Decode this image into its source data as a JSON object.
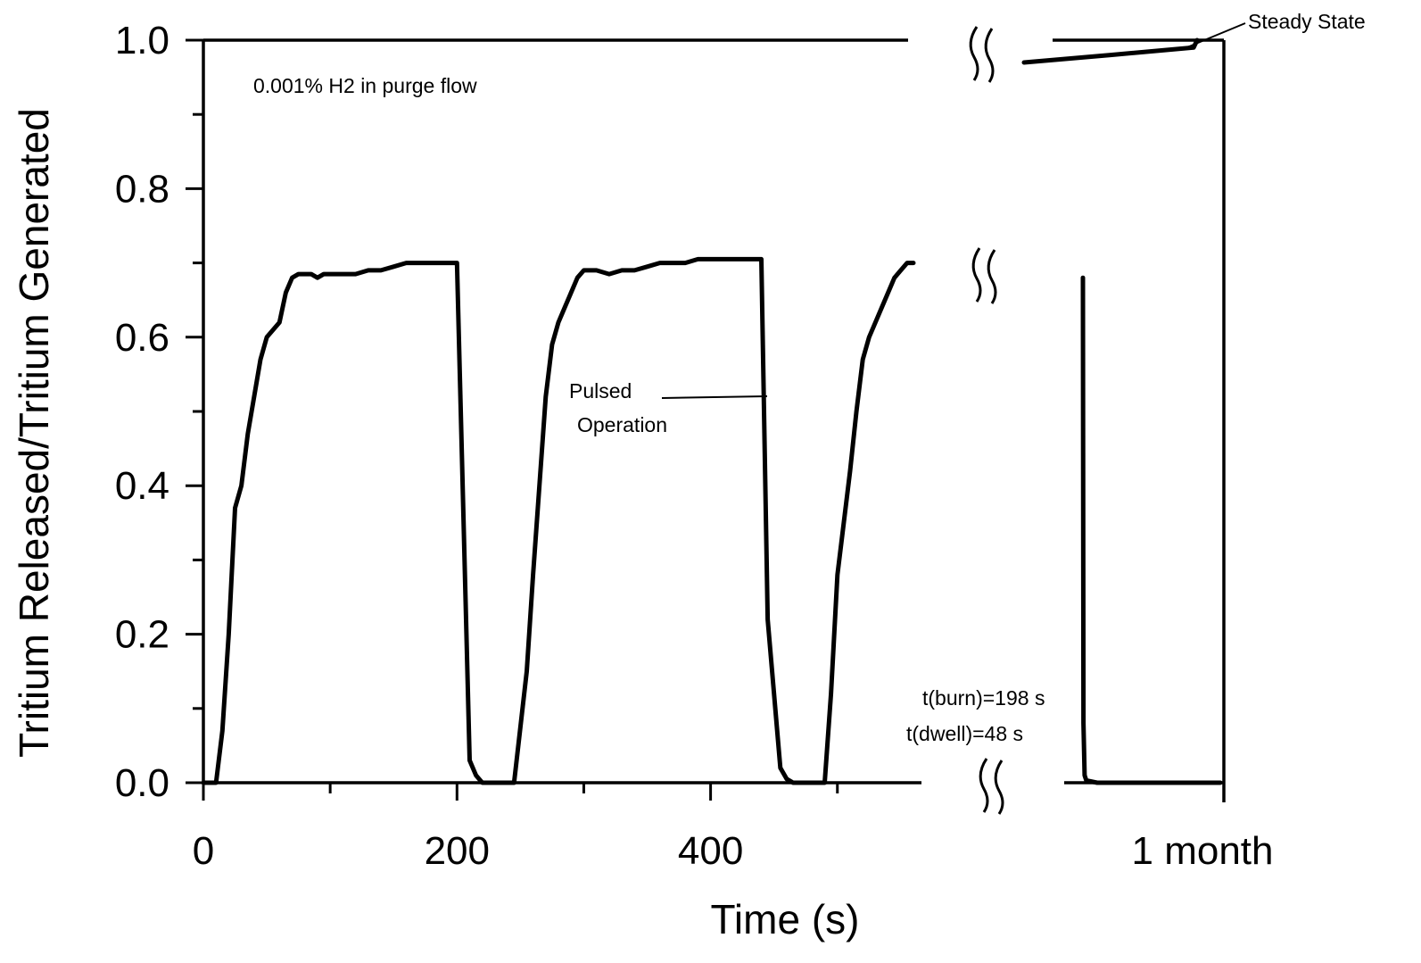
{
  "chart_data": {
    "type": "line",
    "xlabel": "Time (s)",
    "ylabel": "Tritium Released/Tritium Generated",
    "ylim": [
      0,
      1.0
    ],
    "xlim_first_segment": [
      0,
      560
    ],
    "x_ticks": [
      "0",
      "200",
      "400"
    ],
    "x_break_label": "1 month",
    "y_ticks": [
      "0.0",
      "0.2",
      "0.4",
      "0.6",
      "0.8",
      "1.0"
    ],
    "grid": false,
    "axis_break": true,
    "annotations": {
      "condition": "0.001% H2 in purge flow",
      "pulsed_line1": "Pulsed",
      "pulsed_line2": "Operation",
      "steady_state": "Steady State",
      "burn": "t(burn)=198 s",
      "dwell": "t(dwell)=48 s"
    },
    "series": [
      {
        "name": "Pulsed Operation",
        "segment": "before-break",
        "x": [
          0,
          10,
          15,
          20,
          25,
          30,
          35,
          40,
          45,
          50,
          55,
          60,
          65,
          70,
          75,
          80,
          85,
          90,
          95,
          100,
          110,
          120,
          130,
          140,
          150,
          160,
          170,
          180,
          190,
          200,
          210,
          215,
          220,
          225,
          235,
          245,
          255,
          260,
          265,
          270,
          275,
          280,
          285,
          290,
          295,
          300,
          310,
          320,
          330,
          340,
          350,
          360,
          370,
          380,
          390,
          400,
          420,
          440,
          445,
          455,
          460,
          465,
          470,
          480,
          490,
          495,
          500,
          505,
          510,
          515,
          520,
          525,
          530,
          535,
          540,
          545,
          550,
          555,
          560
        ],
        "y": [
          0,
          0,
          0.07,
          0.2,
          0.37,
          0.4,
          0.47,
          0.52,
          0.57,
          0.6,
          0.61,
          0.62,
          0.66,
          0.68,
          0.685,
          0.685,
          0.685,
          0.68,
          0.685,
          0.685,
          0.685,
          0.685,
          0.69,
          0.69,
          0.695,
          0.7,
          0.7,
          0.7,
          0.7,
          0.7,
          0.03,
          0.01,
          0,
          0,
          0,
          0,
          0.15,
          0.28,
          0.4,
          0.52,
          0.59,
          0.62,
          0.64,
          0.66,
          0.68,
          0.69,
          0.69,
          0.685,
          0.69,
          0.69,
          0.695,
          0.7,
          0.7,
          0.7,
          0.705,
          0.705,
          0.705,
          0.705,
          0.22,
          0.02,
          0.005,
          0,
          0,
          0,
          0,
          0.12,
          0.28,
          0.35,
          0.42,
          0.5,
          0.57,
          0.6,
          0.62,
          0.64,
          0.66,
          0.68,
          0.69,
          0.7,
          0.7
        ]
      },
      {
        "name": "Pulsed Operation",
        "segment": "after-break",
        "x_frac": [
          0.0,
          0.02,
          0.06,
          0.12,
          0.5,
          1.0
        ],
        "y": [
          0.68,
          0.08,
          0.01,
          0.003,
          0.0,
          0.0
        ]
      },
      {
        "name": "Steady State",
        "segment": "after-break",
        "x_frac": [
          0.0,
          0.5,
          0.98,
          1.0
        ],
        "y": [
          0.97,
          0.98,
          0.99,
          1.0
        ]
      }
    ]
  }
}
